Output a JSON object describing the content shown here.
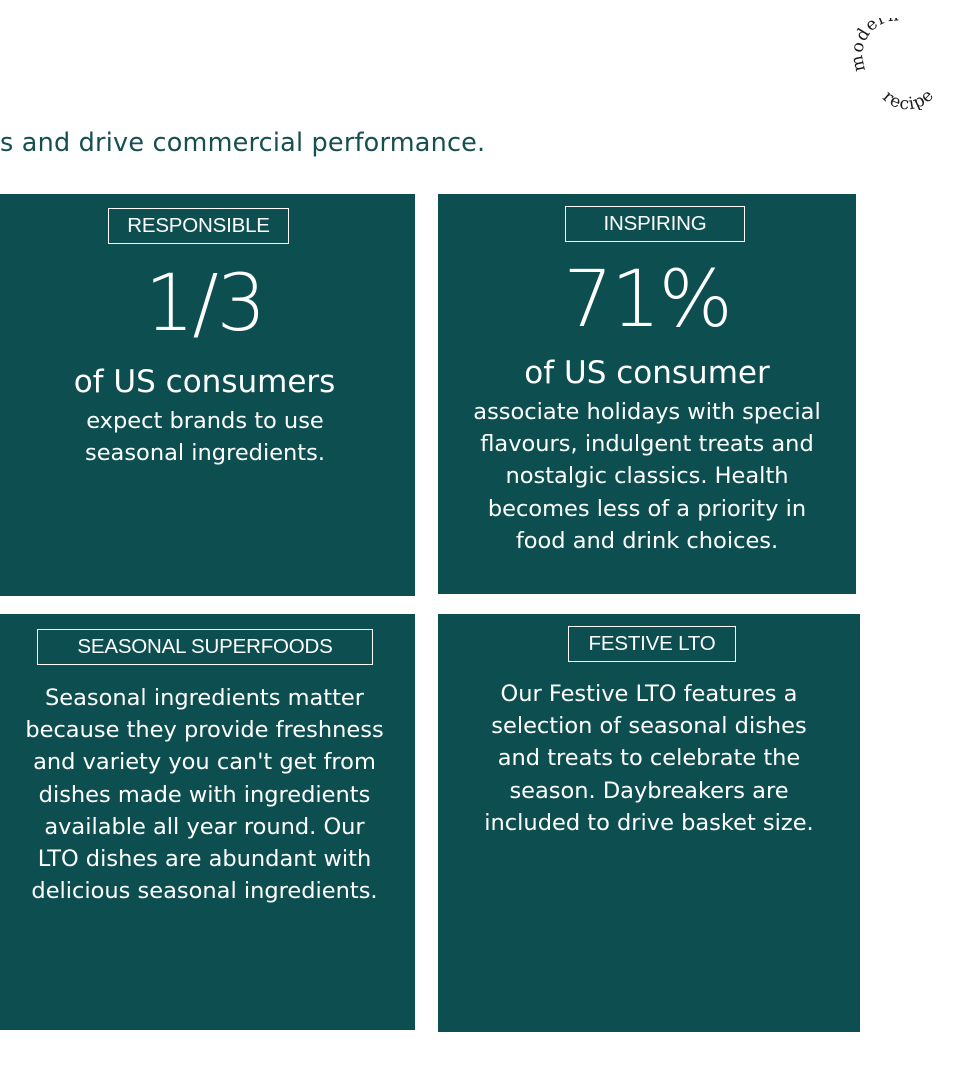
{
  "logo": {
    "word1": "modern",
    "word2": "recipe"
  },
  "headline": "s and drive commercial performance.",
  "cards": [
    {
      "tag": "RESPONSIBLE",
      "stat": "1/3",
      "subject": "of US consumers",
      "body": "expect brands to use seasonal ingredients."
    },
    {
      "tag": "INSPIRING",
      "stat": "71%",
      "subject": "of US consumer",
      "body": "associate holidays with special flavours, indulgent treats and nostalgic classics. Health becomes less of a priority in food and drink choices."
    },
    {
      "tag": "SEASONAL SUPERFOODS",
      "body": "Seasonal ingredients matter because they provide freshness and variety you can't get from dishes made with ingredients available all year round. Our LTO dishes are abundant with delicious seasonal ingredients."
    },
    {
      "tag": "FESTIVE LTO",
      "body": "Our Festive LTO features a selection of seasonal dishes and treats to celebrate the season. Daybreakers are included to drive basket size."
    }
  ]
}
